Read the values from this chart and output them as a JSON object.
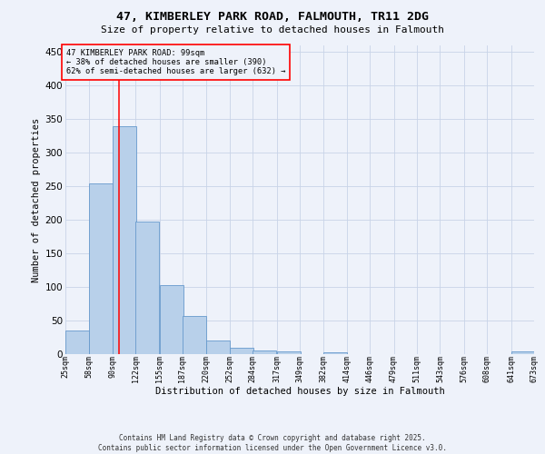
{
  "title": "47, KIMBERLEY PARK ROAD, FALMOUTH, TR11 2DG",
  "subtitle": "Size of property relative to detached houses in Falmouth",
  "xlabel": "Distribution of detached houses by size in Falmouth",
  "ylabel": "Number of detached properties",
  "bar_color": "#b8d0ea",
  "bar_edge_color": "#6699cc",
  "grid_color": "#c8d4e8",
  "background_color": "#eef2fa",
  "vline_x": 99,
  "vline_color": "red",
  "annotation_text": "47 KIMBERLEY PARK ROAD: 99sqm\n← 38% of detached houses are smaller (390)\n62% of semi-detached houses are larger (632) →",
  "annotation_box_color": "red",
  "footer_text": "Contains HM Land Registry data © Crown copyright and database right 2025.\nContains public sector information licensed under the Open Government Licence v3.0.",
  "bin_edges": [
    25,
    58,
    90,
    122,
    155,
    187,
    220,
    252,
    284,
    317,
    349,
    382,
    414,
    446,
    479,
    511,
    543,
    576,
    608,
    641,
    673
  ],
  "bin_labels": [
    "25sqm",
    "58sqm",
    "90sqm",
    "122sqm",
    "155sqm",
    "187sqm",
    "220sqm",
    "252sqm",
    "284sqm",
    "317sqm",
    "349sqm",
    "382sqm",
    "414sqm",
    "446sqm",
    "479sqm",
    "511sqm",
    "543sqm",
    "576sqm",
    "608sqm",
    "641sqm",
    "673sqm"
  ],
  "counts": [
    35,
    255,
    340,
    198,
    103,
    57,
    20,
    10,
    6,
    4,
    0,
    3,
    0,
    0,
    0,
    0,
    0,
    0,
    0,
    4
  ],
  "ylim": [
    0,
    460
  ],
  "yticks": [
    0,
    50,
    100,
    150,
    200,
    250,
    300,
    350,
    400,
    450
  ]
}
